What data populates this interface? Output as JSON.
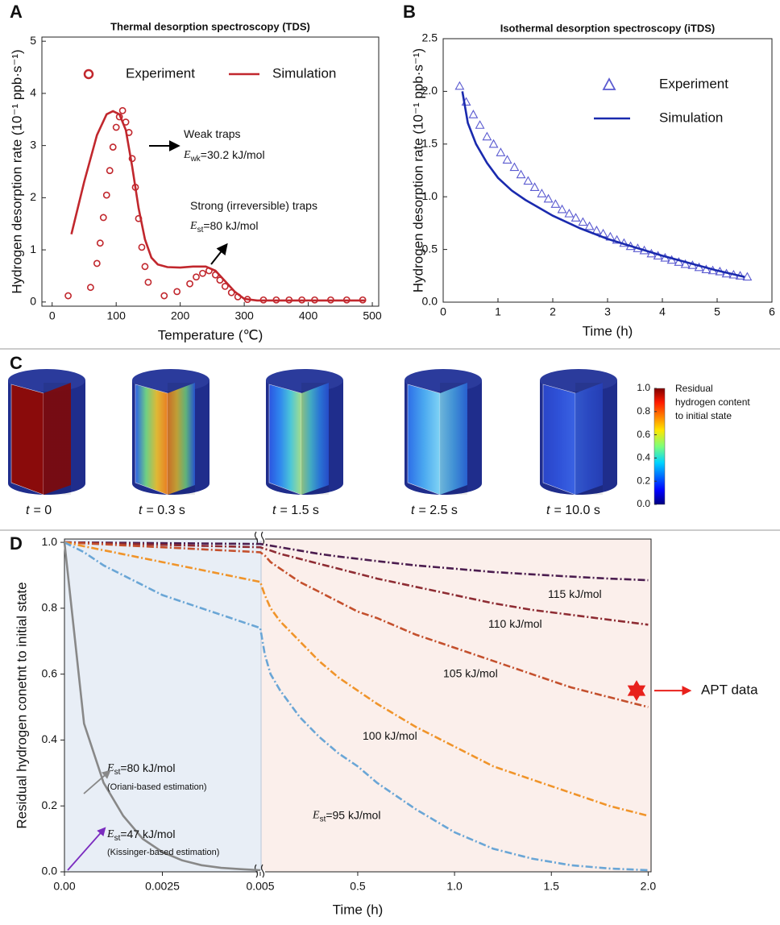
{
  "chart_data": [
    {
      "type": "line",
      "panel_label": "A",
      "title": "Thermal desorption spectroscopy (TDS)",
      "x_label": "Temperature (℃)",
      "y_label": "Hydrogen desorption rate (10⁻¹ ppb·s⁻¹)",
      "xlim": [
        -16,
        510
      ],
      "xticks": [
        0,
        100,
        200,
        300,
        400,
        500
      ],
      "ylim": [
        -0.08,
        5.08
      ],
      "yticks": [
        0,
        1,
        2,
        3,
        4,
        5
      ],
      "legend": "top",
      "series": [
        {
          "name": "Experiment",
          "color": "#c1272d",
          "marker": "circle",
          "x": [
            25,
            60,
            70,
            75,
            80,
            85,
            90,
            95,
            100,
            105,
            110,
            115,
            120,
            125,
            130,
            135,
            140,
            145,
            150,
            175,
            195,
            215,
            225,
            235,
            245,
            255,
            262,
            270,
            280,
            290,
            305,
            330,
            350,
            370,
            390,
            410,
            435,
            460,
            485
          ],
          "values": [
            0.12,
            0.28,
            0.74,
            1.13,
            1.62,
            2.05,
            2.52,
            2.97,
            3.35,
            3.55,
            3.67,
            3.45,
            3.25,
            2.75,
            2.2,
            1.6,
            1.05,
            0.68,
            0.38,
            0.12,
            0.2,
            0.35,
            0.48,
            0.55,
            0.6,
            0.52,
            0.42,
            0.3,
            0.18,
            0.1,
            0.05,
            0.04,
            0.04,
            0.04,
            0.04,
            0.04,
            0.04,
            0.04,
            0.04
          ]
        },
        {
          "name": "Simulation",
          "color": "#c1272d",
          "marker": "none",
          "x": [
            30,
            50,
            70,
            85,
            95,
            105,
            115,
            125,
            135,
            145,
            155,
            165,
            180,
            200,
            220,
            240,
            255,
            270,
            285,
            300,
            320,
            400,
            490
          ],
          "values": [
            1.3,
            2.3,
            3.2,
            3.6,
            3.66,
            3.6,
            3.3,
            2.6,
            1.8,
            1.2,
            0.85,
            0.72,
            0.67,
            0.66,
            0.68,
            0.68,
            0.6,
            0.4,
            0.2,
            0.06,
            0.03,
            0.03,
            0.03
          ]
        }
      ],
      "annotations": [
        {
          "text": "Weak traps"
        },
        {
          "symbol": "E",
          "sub": "wk",
          "text": "=30.2 kJ/mol"
        },
        {
          "text": "Strong (irreversible) traps"
        },
        {
          "symbol": "E",
          "sub": "st",
          "text": "=80 kJ/mol"
        }
      ]
    },
    {
      "type": "line",
      "panel_label": "B",
      "title": "Isothermal desorption spectroscopy (iTDS)",
      "x_label": "Time (h)",
      "y_label": "Hydrogen desorption rate (10⁻¹ ppb·s⁻¹)",
      "xlim": [
        0,
        6
      ],
      "xticks": [
        0,
        1,
        2,
        3,
        4,
        5,
        6
      ],
      "ylim": [
        0,
        2.5
      ],
      "yticks": [
        {
          "value": 0,
          "label": "0.0"
        },
        0.5,
        {
          "value": 1,
          "label": "1.0"
        },
        1.5,
        {
          "value": 2,
          "label": "2.0"
        },
        2.5
      ],
      "legend": "top-right",
      "series": [
        {
          "name": "Experiment",
          "color": "#5a5ad0",
          "marker": "triangle",
          "x": [
            0.3,
            0.42,
            0.55,
            0.67,
            0.8,
            0.92,
            1.05,
            1.17,
            1.3,
            1.42,
            1.55,
            1.67,
            1.8,
            1.92,
            2.05,
            2.17,
            2.3,
            2.42,
            2.55,
            2.67,
            2.8,
            2.92,
            3.05,
            3.17,
            3.3,
            3.42,
            3.55,
            3.67,
            3.8,
            3.92,
            4.05,
            4.17,
            4.3,
            4.42,
            4.55,
            4.67,
            4.8,
            4.92,
            5.05,
            5.17,
            5.3,
            5.42,
            5.55
          ],
          "values": [
            2.05,
            1.9,
            1.78,
            1.68,
            1.57,
            1.5,
            1.42,
            1.35,
            1.28,
            1.21,
            1.15,
            1.09,
            1.03,
            0.98,
            0.93,
            0.88,
            0.84,
            0.8,
            0.76,
            0.72,
            0.68,
            0.65,
            0.62,
            0.59,
            0.56,
            0.53,
            0.51,
            0.49,
            0.46,
            0.44,
            0.42,
            0.4,
            0.38,
            0.36,
            0.35,
            0.33,
            0.31,
            0.3,
            0.29,
            0.27,
            0.26,
            0.25,
            0.24
          ]
        },
        {
          "name": "Simulation",
          "color": "#1a2aae",
          "marker": "none",
          "x": [
            0.35,
            0.45,
            0.6,
            0.8,
            1,
            1.25,
            1.5,
            2,
            2.5,
            3,
            3.5,
            4,
            4.5,
            5,
            5.5
          ],
          "values": [
            2,
            1.7,
            1.5,
            1.32,
            1.18,
            1.06,
            0.97,
            0.82,
            0.7,
            0.6,
            0.52,
            0.44,
            0.37,
            0.3,
            0.24
          ]
        }
      ]
    },
    {
      "type": "line",
      "panel_label": "D",
      "x_label": "Time (h)",
      "y_label": "Residual hydrogen conetnt to initial state",
      "x_segments": [
        {
          "xlim": [
            0,
            0.005
          ],
          "xticks": [
            {
              "value": 0,
              "label": "0.00"
            },
            0.0025,
            0.005
          ]
        },
        {
          "xlim": [
            0.005,
            2.015
          ],
          "xticks": [
            0.5,
            {
              "value": 1,
              "label": "1.0"
            },
            1.5,
            {
              "value": 2,
              "label": "2.0"
            }
          ]
        }
      ],
      "ylim": [
        0,
        1.01
      ],
      "yticks": [
        {
          "value": 0,
          "label": "0.0"
        },
        0.2,
        0.4,
        0.6,
        0.8,
        {
          "value": 1,
          "label": "1.0"
        }
      ],
      "x": [
        0,
        0.0005,
        0.001,
        0.0015,
        0.002,
        0.0025,
        0.003,
        0.0035,
        0.004,
        0.0045,
        0.005,
        0.02,
        0.05,
        0.1,
        0.2,
        0.3,
        0.4,
        0.5,
        0.6,
        0.8,
        1,
        1.2,
        1.4,
        1.6,
        1.8,
        2
      ],
      "series": [
        {
          "name": "115 kJ/mol",
          "color": "#4b1d4f",
          "dash": "dashdot",
          "values": [
            1,
            0.9995,
            0.999,
            0.9985,
            0.998,
            0.9975,
            0.997,
            0.9965,
            0.996,
            0.9955,
            0.995,
            0.993,
            0.99,
            0.985,
            0.975,
            0.965,
            0.957,
            0.95,
            0.943,
            0.93,
            0.92,
            0.91,
            0.903,
            0.896,
            0.89,
            0.885
          ]
        },
        {
          "name": "110 kJ/mol",
          "color": "#8e2c33",
          "dash": "dashdot",
          "values": [
            1,
            0.9985,
            0.997,
            0.9955,
            0.994,
            0.9925,
            0.991,
            0.9895,
            0.988,
            0.9865,
            0.985,
            0.98,
            0.975,
            0.965,
            0.95,
            0.935,
            0.92,
            0.905,
            0.89,
            0.865,
            0.84,
            0.815,
            0.795,
            0.78,
            0.765,
            0.75
          ]
        },
        {
          "name": "105 kJ/mol",
          "color": "#c4502d",
          "dash": "dashdot",
          "values": [
            1,
            0.997,
            0.994,
            0.991,
            0.988,
            0.985,
            0.982,
            0.979,
            0.976,
            0.973,
            0.97,
            0.96,
            0.94,
            0.92,
            0.88,
            0.85,
            0.82,
            0.79,
            0.77,
            0.72,
            0.68,
            0.64,
            0.6,
            0.56,
            0.53,
            0.5
          ]
        },
        {
          "name": "100 kJ/mol",
          "color": "#f0942a",
          "dash": "dashdot",
          "values": [
            1,
            0.988,
            0.976,
            0.964,
            0.952,
            0.94,
            0.928,
            0.916,
            0.904,
            0.892,
            0.88,
            0.84,
            0.8,
            0.76,
            0.7,
            0.64,
            0.59,
            0.55,
            0.51,
            0.44,
            0.38,
            0.32,
            0.28,
            0.24,
            0.2,
            0.17
          ]
        },
        {
          "label": {
            "symbol": "E",
            "sub": "st",
            "text": "=95 kJ/mol"
          },
          "color": "#6aa6d6",
          "dash": "dashdot",
          "values": [
            1,
            0.97,
            0.93,
            0.9,
            0.87,
            0.84,
            0.82,
            0.8,
            0.78,
            0.76,
            0.74,
            0.66,
            0.6,
            0.55,
            0.47,
            0.41,
            0.36,
            0.32,
            0.27,
            0.19,
            0.12,
            0.07,
            0.04,
            0.02,
            0.01,
            0.005
          ]
        },
        {
          "label": {
            "symbol": "E",
            "sub": "st",
            "text": "=80 kJ/mol",
            "note": "(Oriani-based estimation)"
          },
          "color": "#888888",
          "dash": "solid",
          "values": [
            1,
            0.45,
            0.27,
            0.17,
            0.1,
            0.06,
            0.035,
            0.02,
            0.012,
            0.008,
            0.005,
            null,
            null,
            null,
            null,
            null,
            null,
            null,
            null,
            null,
            null,
            null,
            null,
            null,
            null,
            null
          ]
        }
      ],
      "annotations": [
        {
          "symbol": "E",
          "sub": "st",
          "text": "=47 kJ/mol",
          "note": "(Kissinger-based estimation)",
          "color": "#7b2cbf"
        }
      ],
      "marker_point": {
        "label": "APT data",
        "x": 1.94,
        "value": 0.55,
        "color": "#e8211c"
      }
    }
  ],
  "panel_c": {
    "panel_label": "C",
    "snapshots": [
      {
        "symbol": "t",
        "text": "= 0"
      },
      {
        "symbol": "t",
        "text": "= 0.3 s"
      },
      {
        "symbol": "t",
        "text": "= 1.5 s"
      },
      {
        "symbol": "t",
        "text": "= 2.5 s"
      },
      {
        "symbol": "t",
        "text": "= 10.0 s"
      }
    ],
    "colorbar": {
      "title_lines": [
        "Residual",
        "hydrogen content",
        "to initial state"
      ],
      "lim": [
        0,
        1
      ],
      "ticks": [
        {
          "value": 1,
          "label": "1.0"
        },
        0.8,
        0.6,
        0.4,
        0.2,
        {
          "value": 0,
          "label": "0.0"
        }
      ]
    }
  }
}
